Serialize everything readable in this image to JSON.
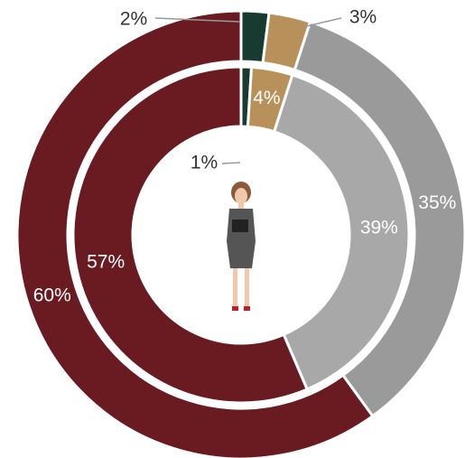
{
  "chart_data": {
    "type": "donut",
    "series": [
      {
        "colors": [
          "#173a31",
          "#b8915a",
          "#9a9a9a",
          "#6a1a21"
        ],
        "values": [
          2,
          3,
          35,
          60
        ],
        "value_labels": [
          "2%",
          "3%",
          "35%",
          "60%"
        ]
      },
      {
        "colors": [
          "#173a31",
          "#b8915a",
          "#a8a8a8",
          "#6a1a21"
        ],
        "values": [
          1,
          4,
          39,
          57
        ],
        "value_labels": [
          "1%",
          "4%",
          "39%",
          "57%"
        ]
      }
    ]
  }
}
